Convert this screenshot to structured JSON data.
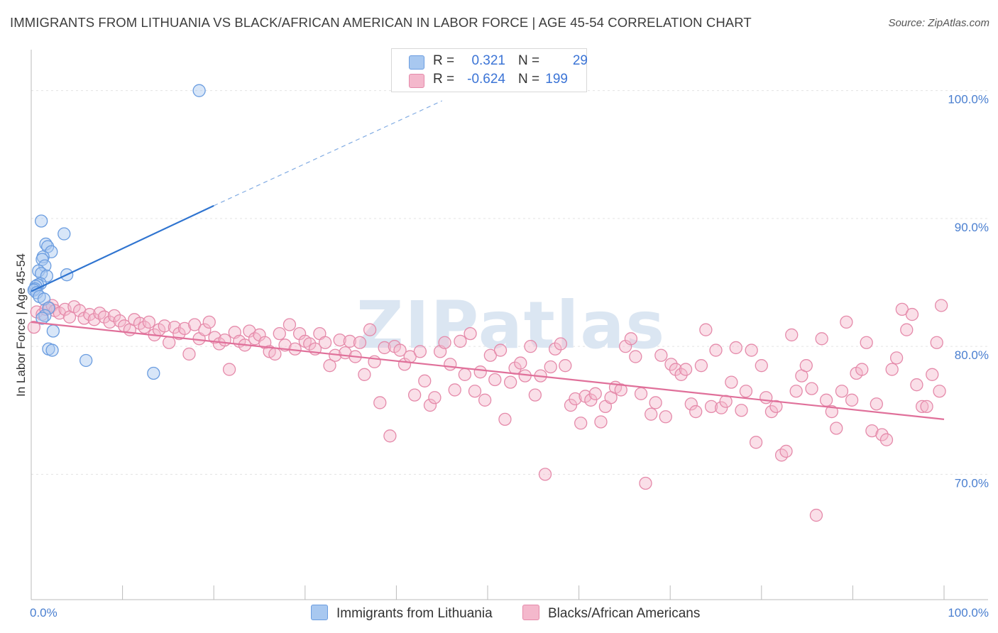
{
  "title": "IMMIGRANTS FROM LITHUANIA VS BLACK/AFRICAN AMERICAN IN LABOR FORCE | AGE 45-54 CORRELATION CHART",
  "source": "Source: ZipAtlas.com",
  "watermark": "ZIPatlas",
  "legend": {
    "rows": [
      {
        "r_label": "R =",
        "r_value": "0.321",
        "n_label": "N =",
        "n_value": "29"
      },
      {
        "r_label": "R =",
        "r_value": "-0.624",
        "n_label": "N =",
        "n_value": "199"
      }
    ]
  },
  "bottom_legend": {
    "series1": "Immigrants from Lithuania",
    "series2": "Blacks/African Americans"
  },
  "colors": {
    "blue_fill": "#a8c8f0",
    "blue_stroke": "#6b9de0",
    "blue_line": "#2f74d0",
    "pink_fill": "#f4b8cc",
    "pink_stroke": "#e58aaa",
    "pink_line": "#e0709a",
    "tick_text": "#4a7fd0"
  },
  "chart_data": {
    "type": "scatter",
    "title": "IMMIGRANTS FROM LITHUANIA VS BLACK/AFRICAN AMERICAN IN LABOR FORCE | AGE 45-54 CORRELATION CHART",
    "xlabel": "",
    "ylabel": "In Labor Force | Age 45-54",
    "xlim": [
      0,
      100
    ],
    "ylim": [
      60.2,
      103.2
    ],
    "x_tick_labels": [
      "0.0%",
      "100.0%"
    ],
    "y_ticks": [
      70,
      80,
      90,
      100
    ],
    "y_tick_labels": [
      "70.0%",
      "80.0%",
      "90.0%",
      "100.0%"
    ],
    "grid": true,
    "series": [
      {
        "name": "Immigrants from Lithuania",
        "R": 0.321,
        "N": 29,
        "trend": {
          "x0": 0.0,
          "y0": 84.3,
          "x1": 20.0,
          "y1": 91.0,
          "x_dash_end": 45.0,
          "y_dash_end": 99.2
        },
        "points": [
          [
            18.4,
            100.0
          ],
          [
            1.1,
            89.8
          ],
          [
            3.6,
            88.8
          ],
          [
            1.6,
            88.0
          ],
          [
            1.8,
            87.8
          ],
          [
            2.2,
            87.4
          ],
          [
            1.3,
            87.0
          ],
          [
            1.2,
            86.8
          ],
          [
            1.5,
            86.3
          ],
          [
            0.8,
            85.9
          ],
          [
            1.1,
            85.7
          ],
          [
            3.9,
            85.6
          ],
          [
            1.7,
            85.5
          ],
          [
            1.0,
            84.9
          ],
          [
            0.7,
            84.8
          ],
          [
            0.5,
            84.7
          ],
          [
            0.4,
            84.5
          ],
          [
            0.3,
            84.4
          ],
          [
            0.6,
            84.2
          ],
          [
            0.9,
            83.9
          ],
          [
            1.4,
            83.7
          ],
          [
            1.9,
            83.0
          ],
          [
            1.5,
            82.4
          ],
          [
            1.2,
            82.2
          ],
          [
            2.4,
            81.2
          ],
          [
            1.9,
            79.8
          ],
          [
            2.3,
            79.7
          ],
          [
            6.0,
            78.9
          ],
          [
            13.4,
            77.9
          ]
        ]
      },
      {
        "name": "Blacks/African Americans",
        "R": -0.624,
        "N": 199,
        "trend": {
          "x0": 0.0,
          "y0": 81.9,
          "x1": 100.0,
          "y1": 74.3
        },
        "points": [
          [
            0.3,
            81.5
          ],
          [
            0.6,
            82.7
          ],
          [
            1.2,
            82.5
          ],
          [
            1.6,
            82.9
          ],
          [
            2.0,
            83.0
          ],
          [
            2.3,
            83.2
          ],
          [
            2.6,
            82.8
          ],
          [
            3.1,
            82.6
          ],
          [
            3.7,
            82.9
          ],
          [
            4.2,
            82.3
          ],
          [
            4.7,
            83.1
          ],
          [
            5.3,
            82.8
          ],
          [
            5.8,
            82.2
          ],
          [
            6.4,
            82.5
          ],
          [
            6.9,
            82.1
          ],
          [
            7.5,
            82.6
          ],
          [
            8.0,
            82.3
          ],
          [
            8.6,
            81.9
          ],
          [
            9.1,
            82.4
          ],
          [
            9.7,
            82.0
          ],
          [
            10.2,
            81.6
          ],
          [
            10.8,
            81.3
          ],
          [
            11.3,
            82.1
          ],
          [
            11.9,
            81.8
          ],
          [
            12.4,
            81.5
          ],
          [
            12.9,
            81.9
          ],
          [
            13.5,
            80.9
          ],
          [
            14.0,
            81.3
          ],
          [
            14.6,
            81.6
          ],
          [
            15.1,
            80.3
          ],
          [
            15.7,
            81.5
          ],
          [
            16.2,
            81.0
          ],
          [
            16.8,
            81.4
          ],
          [
            17.3,
            79.4
          ],
          [
            17.9,
            81.7
          ],
          [
            18.4,
            80.6
          ],
          [
            19.0,
            81.3
          ],
          [
            19.5,
            81.9
          ],
          [
            20.1,
            80.7
          ],
          [
            20.6,
            80.2
          ],
          [
            21.2,
            80.5
          ],
          [
            21.7,
            78.2
          ],
          [
            22.3,
            81.1
          ],
          [
            22.8,
            80.4
          ],
          [
            23.4,
            80.1
          ],
          [
            23.9,
            81.2
          ],
          [
            24.5,
            80.6
          ],
          [
            25.0,
            80.9
          ],
          [
            25.6,
            80.3
          ],
          [
            26.1,
            79.6
          ],
          [
            26.7,
            79.4
          ],
          [
            27.2,
            81.0
          ],
          [
            27.8,
            80.1
          ],
          [
            28.3,
            81.7
          ],
          [
            28.9,
            79.8
          ],
          [
            29.4,
            81.0
          ],
          [
            30.0,
            80.4
          ],
          [
            30.5,
            80.2
          ],
          [
            31.1,
            79.8
          ],
          [
            31.6,
            81.0
          ],
          [
            32.2,
            80.3
          ],
          [
            32.7,
            78.5
          ],
          [
            33.3,
            79.3
          ],
          [
            33.8,
            80.5
          ],
          [
            34.4,
            79.5
          ],
          [
            34.9,
            80.4
          ],
          [
            35.5,
            79.2
          ],
          [
            36.0,
            80.3
          ],
          [
            36.5,
            77.8
          ],
          [
            37.1,
            81.3
          ],
          [
            37.6,
            78.8
          ],
          [
            38.2,
            75.6
          ],
          [
            38.7,
            79.9
          ],
          [
            39.3,
            73.0
          ],
          [
            39.8,
            80.0
          ],
          [
            40.4,
            79.7
          ],
          [
            40.9,
            78.6
          ],
          [
            41.5,
            79.2
          ],
          [
            42.0,
            76.2
          ],
          [
            42.6,
            79.6
          ],
          [
            43.1,
            77.3
          ],
          [
            43.7,
            75.4
          ],
          [
            44.2,
            76.0
          ],
          [
            44.8,
            79.6
          ],
          [
            45.3,
            80.3
          ],
          [
            45.9,
            78.6
          ],
          [
            46.4,
            76.6
          ],
          [
            47.0,
            80.4
          ],
          [
            47.5,
            77.8
          ],
          [
            48.1,
            81.0
          ],
          [
            48.6,
            76.5
          ],
          [
            49.2,
            78.0
          ],
          [
            49.7,
            75.8
          ],
          [
            50.3,
            79.3
          ],
          [
            50.8,
            77.4
          ],
          [
            51.4,
            79.7
          ],
          [
            51.9,
            74.3
          ],
          [
            52.5,
            77.2
          ],
          [
            53.0,
            78.3
          ],
          [
            53.6,
            78.7
          ],
          [
            54.1,
            77.7
          ],
          [
            54.7,
            80.0
          ],
          [
            55.2,
            76.2
          ],
          [
            55.8,
            77.7
          ],
          [
            56.3,
            70.0
          ],
          [
            56.9,
            78.4
          ],
          [
            57.4,
            79.8
          ],
          [
            58.0,
            80.2
          ],
          [
            58.5,
            78.5
          ],
          [
            59.1,
            75.4
          ],
          [
            59.6,
            75.9
          ],
          [
            60.2,
            74.0
          ],
          [
            60.7,
            76.1
          ],
          [
            61.3,
            75.8
          ],
          [
            61.8,
            76.3
          ],
          [
            62.4,
            74.1
          ],
          [
            62.9,
            75.3
          ],
          [
            63.5,
            76.0
          ],
          [
            64.0,
            76.8
          ],
          [
            64.6,
            76.6
          ],
          [
            65.1,
            80.0
          ],
          [
            65.7,
            80.6
          ],
          [
            66.2,
            79.2
          ],
          [
            66.8,
            76.3
          ],
          [
            67.3,
            69.3
          ],
          [
            67.9,
            74.7
          ],
          [
            68.4,
            75.6
          ],
          [
            69.0,
            79.3
          ],
          [
            69.5,
            74.5
          ],
          [
            70.1,
            78.6
          ],
          [
            70.6,
            78.2
          ],
          [
            71.2,
            77.8
          ],
          [
            71.7,
            78.2
          ],
          [
            72.3,
            75.5
          ],
          [
            72.8,
            74.9
          ],
          [
            73.4,
            78.5
          ],
          [
            73.9,
            81.3
          ],
          [
            74.5,
            75.3
          ],
          [
            75.0,
            79.7
          ],
          [
            75.6,
            75.2
          ],
          [
            76.1,
            75.7
          ],
          [
            76.7,
            77.2
          ],
          [
            77.2,
            79.9
          ],
          [
            77.8,
            75.0
          ],
          [
            78.3,
            76.5
          ],
          [
            78.9,
            79.7
          ],
          [
            79.4,
            72.5
          ],
          [
            80.0,
            78.5
          ],
          [
            80.5,
            76.0
          ],
          [
            81.1,
            74.9
          ],
          [
            81.6,
            75.3
          ],
          [
            82.2,
            71.5
          ],
          [
            82.7,
            71.8
          ],
          [
            83.3,
            80.9
          ],
          [
            83.8,
            76.5
          ],
          [
            84.4,
            77.7
          ],
          [
            84.9,
            78.5
          ],
          [
            85.5,
            76.7
          ],
          [
            86.0,
            66.8
          ],
          [
            86.6,
            80.6
          ],
          [
            87.1,
            75.8
          ],
          [
            87.7,
            74.9
          ],
          [
            88.2,
            73.6
          ],
          [
            88.8,
            76.5
          ],
          [
            89.3,
            81.9
          ],
          [
            89.9,
            75.8
          ],
          [
            90.4,
            77.9
          ],
          [
            91.0,
            78.2
          ],
          [
            91.5,
            80.3
          ],
          [
            92.1,
            73.4
          ],
          [
            92.6,
            75.5
          ],
          [
            93.2,
            73.1
          ],
          [
            93.7,
            72.7
          ],
          [
            94.3,
            78.2
          ],
          [
            94.8,
            79.1
          ],
          [
            95.4,
            82.9
          ],
          [
            95.9,
            81.3
          ],
          [
            96.5,
            82.5
          ],
          [
            97.0,
            77.0
          ],
          [
            97.6,
            75.3
          ],
          [
            98.1,
            75.3
          ],
          [
            98.7,
            77.8
          ],
          [
            99.2,
            80.3
          ],
          [
            99.5,
            76.5
          ],
          [
            99.7,
            83.2
          ]
        ]
      }
    ]
  }
}
